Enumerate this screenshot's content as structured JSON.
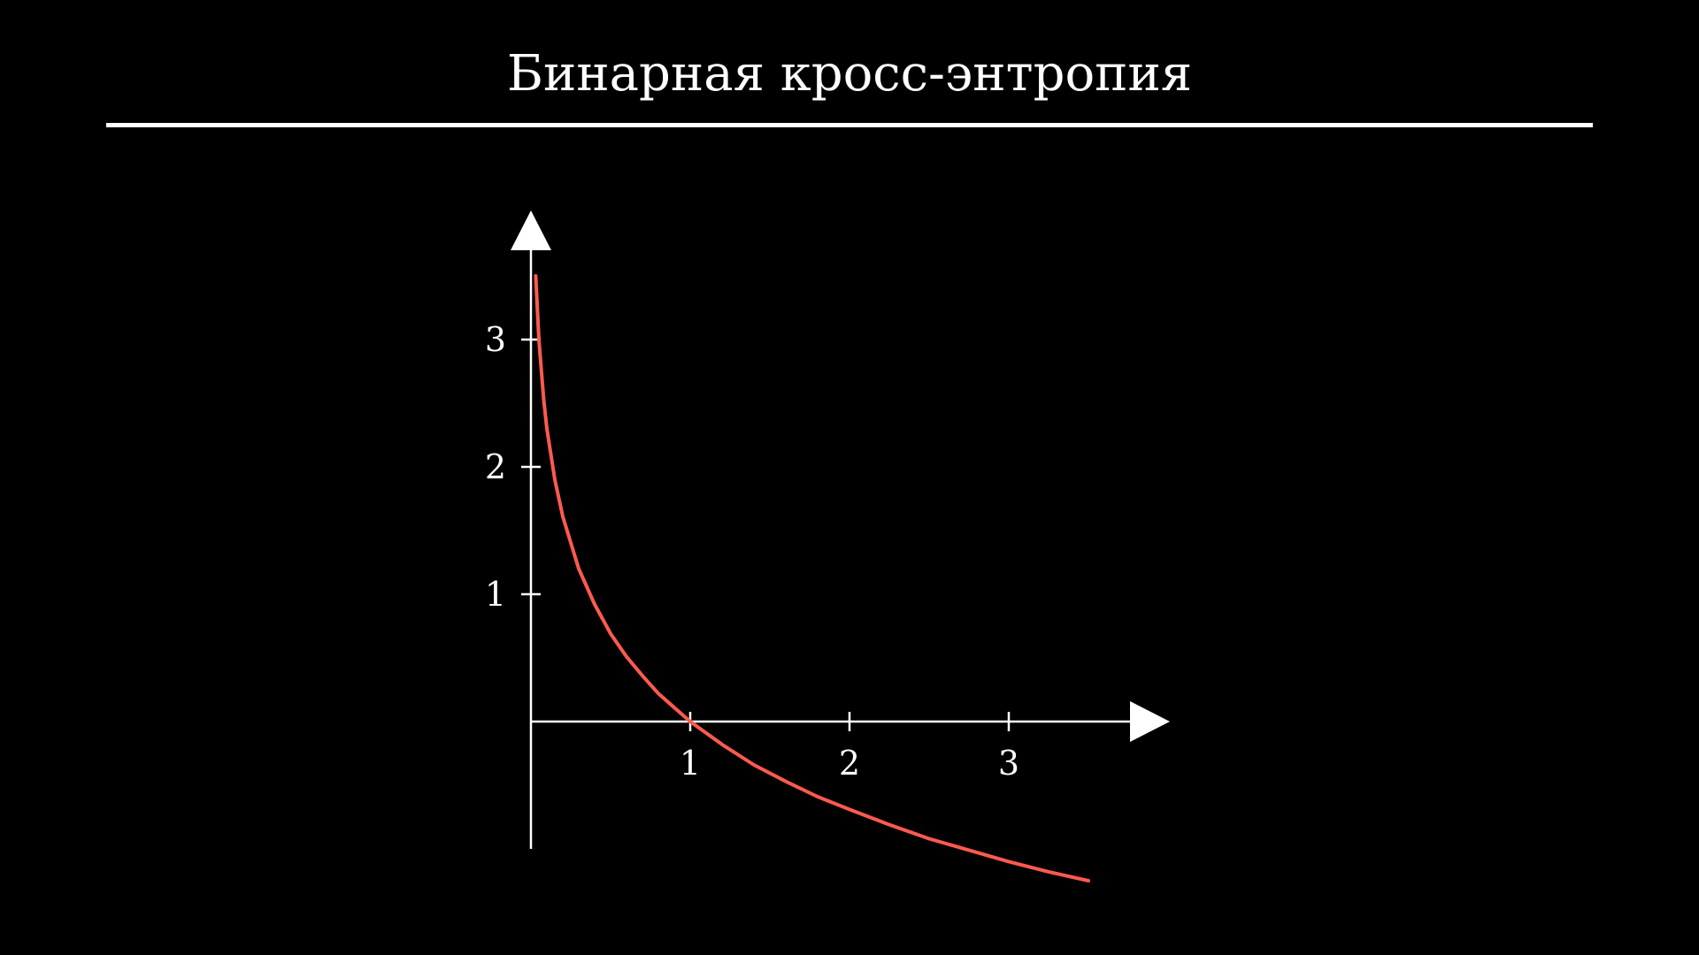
{
  "slide": {
    "title": "Бинарная кросс-энтропия"
  },
  "chart_data": {
    "type": "line",
    "function": "-ln(x)",
    "title": "",
    "xlabel": "",
    "ylabel": "",
    "xlim": [
      0,
      3.8
    ],
    "ylim": [
      -1,
      3.8
    ],
    "x_ticks": [
      1,
      2,
      3
    ],
    "y_ticks": [
      1,
      2,
      3
    ],
    "x_tick_labels": [
      "1",
      "2",
      "3"
    ],
    "y_tick_labels": [
      "1",
      "2",
      "3"
    ],
    "grid": false,
    "axis_color": "#ffffff",
    "series": [
      {
        "color": "#ff5a4f",
        "x": [
          0.03,
          0.05,
          0.08,
          0.1,
          0.15,
          0.2,
          0.3,
          0.4,
          0.5,
          0.6,
          0.7,
          0.8,
          0.9,
          1.0,
          1.2,
          1.4,
          1.6,
          1.8,
          2.0,
          2.25,
          2.5,
          2.75,
          3.0,
          3.25,
          3.5
        ],
        "y": [
          3.5,
          3.0,
          2.53,
          2.3,
          1.9,
          1.61,
          1.2,
          0.92,
          0.69,
          0.51,
          0.36,
          0.22,
          0.11,
          0.0,
          -0.18,
          -0.34,
          -0.47,
          -0.59,
          -0.69,
          -0.81,
          -0.92,
          -1.01,
          -1.1,
          -1.18,
          -1.25
        ]
      }
    ]
  }
}
